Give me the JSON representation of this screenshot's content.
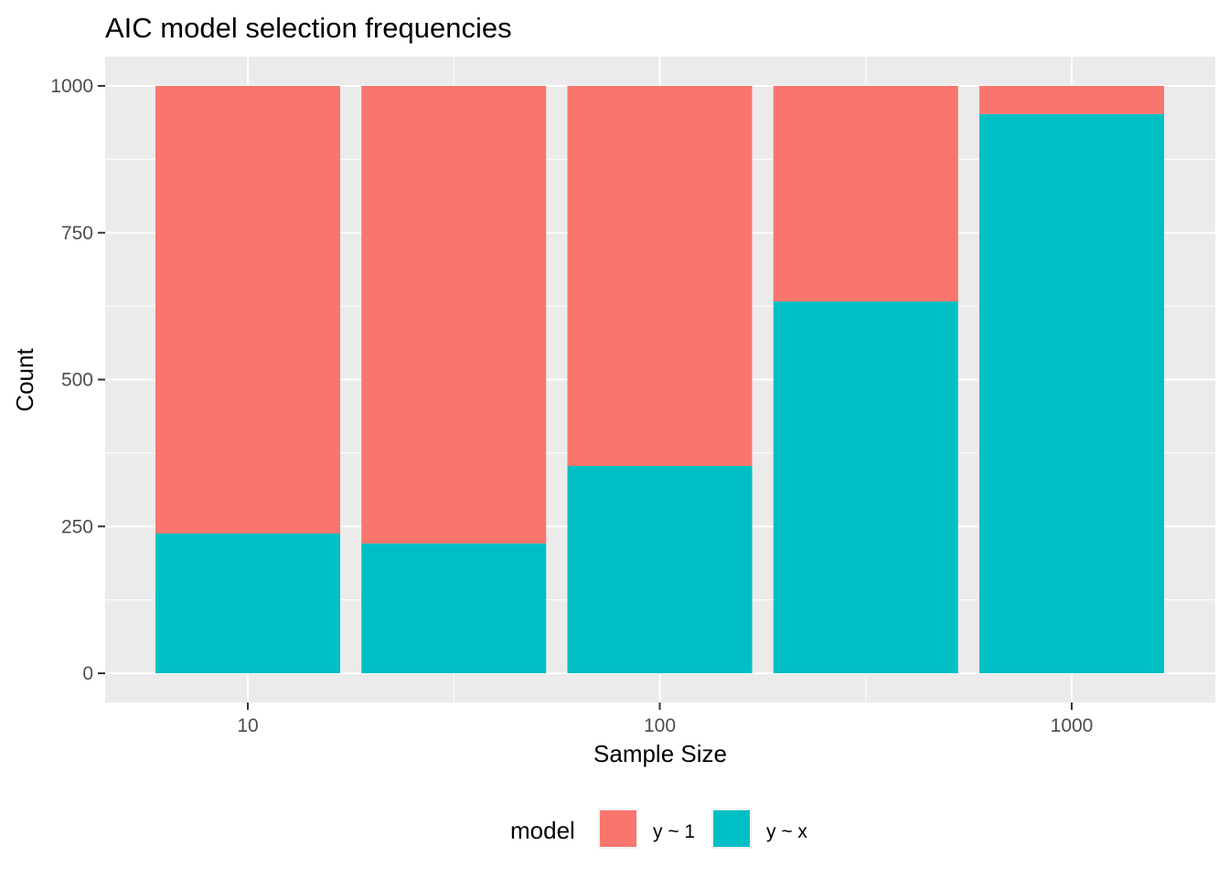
{
  "chart_data": {
    "type": "bar",
    "stacked": true,
    "title": "AIC model selection frequencies",
    "xlabel": "Sample Size",
    "ylabel": "Count",
    "ylim": [
      0,
      1000
    ],
    "y_ticks": [
      0,
      250,
      500,
      750,
      1000
    ],
    "y_tick_labels": [
      "0",
      "250",
      "500",
      "750",
      "1000"
    ],
    "x_scale": "log10",
    "x_tick_labels": [
      "10",
      "100",
      "1000"
    ],
    "categories": [
      "10",
      "31.6",
      "100",
      "316",
      "1000"
    ],
    "series": [
      {
        "name": "y ~ 1",
        "color": "#F8766D",
        "values": [
          762,
          779,
          647,
          367,
          48
        ]
      },
      {
        "name": "y ~ x",
        "color": "#00BFC4",
        "values": [
          238,
          221,
          353,
          633,
          952
        ]
      }
    ],
    "grid": true,
    "legend": {
      "title": "model",
      "position": "bottom"
    }
  }
}
